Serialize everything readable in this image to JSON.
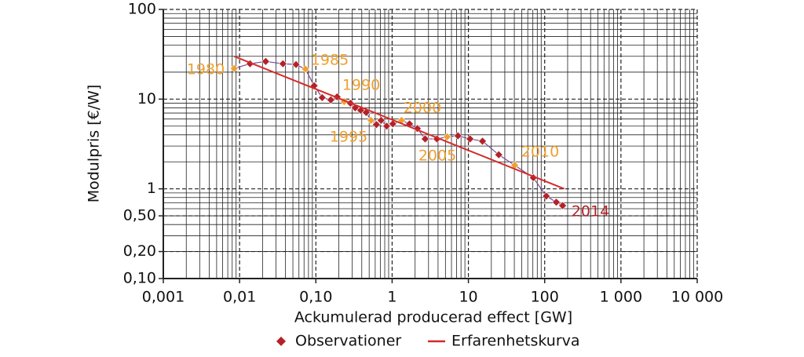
{
  "chart_data": {
    "type": "scatter",
    "xlabel": "Ackumulerad producerad effect [GW]",
    "ylabel": "Modulpris [€/W]",
    "xscale": "log",
    "yscale": "log",
    "grid": true,
    "minor_grid": true,
    "legend": "bottom",
    "xlim": [
      0.001,
      10000
    ],
    "xticks": [
      {
        "value": 0.001,
        "label": "0,001"
      },
      {
        "value": 0.01,
        "label": "0,01"
      },
      {
        "value": 0.1,
        "label": "0,10"
      },
      1,
      10,
      100,
      {
        "value": 1000,
        "label": "1 000"
      },
      {
        "value": 10000,
        "label": "10 000"
      }
    ],
    "ylim": [
      0.1,
      100
    ],
    "yticks": [
      {
        "value": 0.1,
        "label": "0,10"
      },
      {
        "value": 0.2,
        "label": "0,20"
      },
      {
        "value": 0.5,
        "label": "0,50"
      },
      1,
      10,
      100
    ],
    "series": [
      {
        "name": "Observationer",
        "color": "#b22228",
        "highlight_color": "#f0a030",
        "x": [
          0.0085,
          0.0137,
          0.022,
          0.037,
          0.055,
          0.073,
          0.095,
          0.121,
          0.157,
          0.19,
          0.235,
          0.284,
          0.328,
          0.387,
          0.457,
          0.527,
          0.622,
          0.717,
          0.847,
          1.02,
          1.33,
          1.69,
          2.14,
          2.71,
          3.87,
          5.27,
          7.3,
          10.5,
          15.3,
          25,
          40.5,
          71,
          105,
          142,
          172
        ],
        "values": [
          22,
          24.8,
          26.3,
          24.8,
          24.3,
          21.6,
          14.1,
          10.4,
          9.8,
          10.6,
          9.4,
          9.0,
          8.0,
          7.5,
          7.1,
          5.8,
          5.2,
          5.8,
          5.0,
          5.3,
          5.8,
          5.3,
          4.7,
          3.6,
          3.6,
          3.8,
          3.9,
          3.6,
          3.4,
          2.4,
          1.83,
          1.33,
          0.83,
          0.71,
          0.65
        ]
      },
      {
        "name": "Erfarenhetskurva",
        "color": "#d62a2a",
        "type": "line",
        "x": [
          0.0085,
          181
        ],
        "values": [
          30,
          1
        ]
      }
    ],
    "annotations": [
      {
        "text": "1980",
        "color": "#f0a030"
      },
      {
        "text": "1985",
        "color": "#f0a030"
      },
      {
        "text": "1990",
        "color": "#f0a030"
      },
      {
        "text": "1995",
        "color": "#f0a030"
      },
      {
        "text": "2000",
        "color": "#f0a030"
      },
      {
        "text": "2005",
        "color": "#f0a030"
      },
      {
        "text": "2010",
        "color": "#f0a030"
      },
      {
        "text": "2014",
        "color": "#b22228"
      }
    ]
  }
}
